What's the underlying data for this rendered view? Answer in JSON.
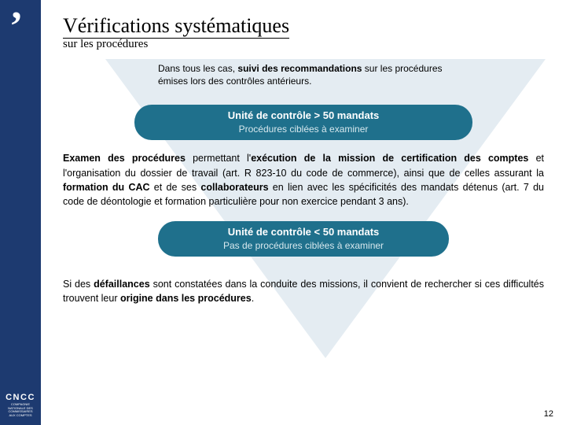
{
  "colors": {
    "rail": "#1d3a70",
    "triangle": "#e3ebf1",
    "pill": "#1f708c",
    "pill_sub": "#d7e8ee",
    "text": "#000000",
    "white": "#ffffff"
  },
  "logo": {
    "mark": "’",
    "text": "CNCC",
    "subtext": "COMPAGNIE NATIONALE DES COMMISSAIRES AUX COMPTES"
  },
  "title": "Vérifications systématiques",
  "subtitle": "sur les procédures",
  "intro": {
    "prefix": "Dans tous les cas, ",
    "bold": "suivi des recommandations",
    "suffix": " sur les procédures émises lors des contrôles antérieurs."
  },
  "pill1": {
    "title": "Unité de contrôle > 50 mandats",
    "sub": "Procédures ciblées à examiner"
  },
  "body": {
    "b1": "Examen des procédures",
    "t1": " permettant l'",
    "b2": "exécution de la mission de certification des comptes",
    "t2": " et l'organisation du dossier de travail (art. R 823-10 du code de commerce), ainsi que de celles assurant la ",
    "b3": "formation du CAC",
    "t3": " et de ses ",
    "b4": "collaborateurs",
    "t4": " en lien avec les spécificités des mandats détenus (art. 7 du code de déontologie et formation particulière pour non exercice pendant 3 ans)."
  },
  "pill2": {
    "title": "Unité de contrôle < 50 mandats",
    "sub": "Pas de procédures ciblées à examiner"
  },
  "footer": {
    "t1": "Si des ",
    "b1": "défaillances",
    "t2": " sont constatées dans la conduite des missions, il convient de rechercher si ces difficultés trouvent leur ",
    "b2": "origine dans les procédures",
    "t3": "."
  },
  "page": "12"
}
